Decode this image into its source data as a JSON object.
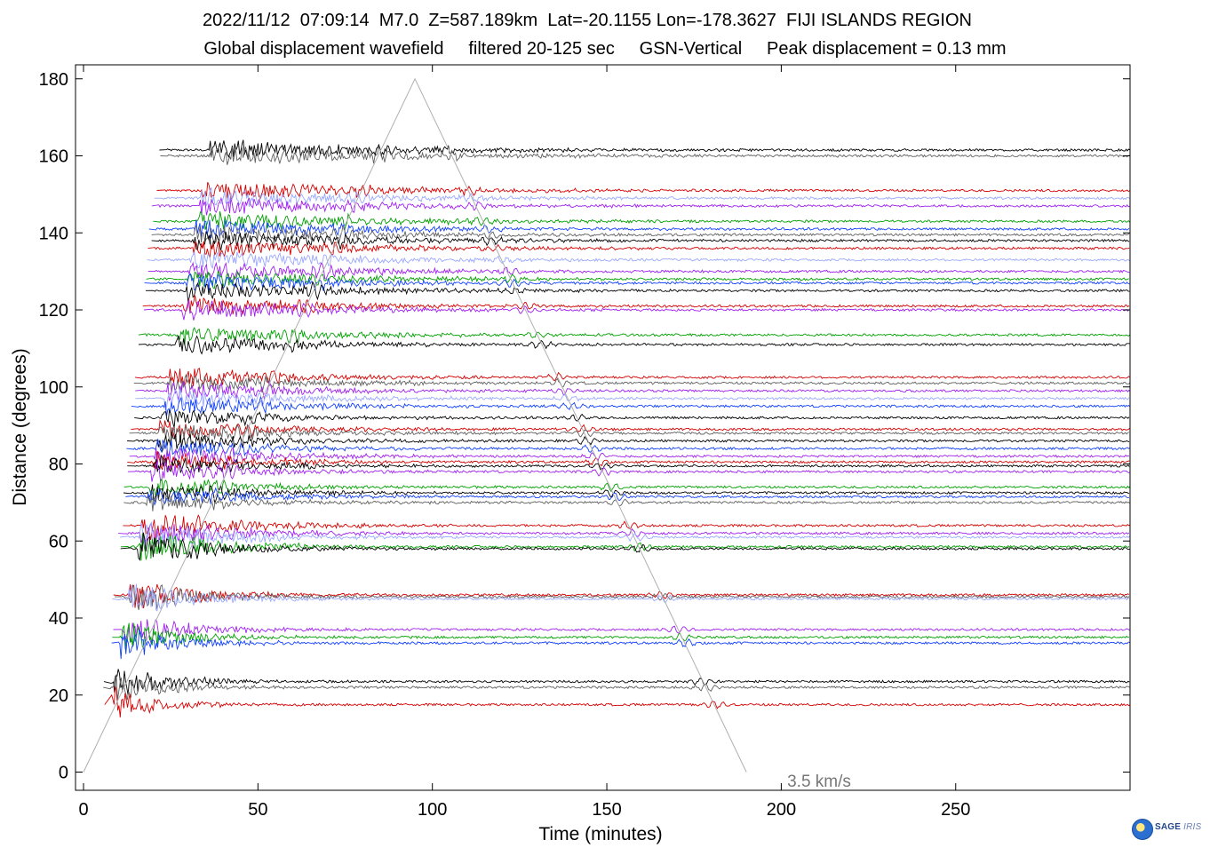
{
  "header": {
    "line1": "2022/11/12  07:09:14  M7.0  Z=587.189km  Lat=-20.1155 Lon=-178.3627  FIJI ISLANDS REGION",
    "line2": "Global displacement wavefield     filtered 20-125 sec     GSN-Vertical     Peak displacement = 0.13 mm"
  },
  "logo": {
    "text_main": "SAGE",
    "text_sub": "IRIS"
  },
  "chart_data": {
    "type": "line",
    "title": "2022/11/12  07:09:14  M7.0  Z=587.189km  Lat=-20.1155 Lon=-178.3627  FIJI ISLANDS REGION",
    "subtitle": "Global displacement wavefield     filtered 20-125 sec     GSN-Vertical     Peak displacement = 0.13 mm",
    "xlabel": "Time (minutes)",
    "ylabel": "Distance (degrees)",
    "xlim": [
      0,
      300
    ],
    "ylim": [
      -5,
      185
    ],
    "x_ticks": [
      0,
      50,
      100,
      150,
      200,
      250
    ],
    "y_ticks": [
      0,
      20,
      40,
      60,
      80,
      100,
      120,
      140,
      160,
      180
    ],
    "grid": false,
    "annotation": {
      "text": "3.5 km/s",
      "x": 200,
      "y": -2
    },
    "reference_line": {
      "name": "3.5 km/s",
      "points": [
        [
          0,
          0
        ],
        [
          95,
          180
        ],
        [
          190,
          0
        ]
      ],
      "color": "#aaaaaa"
    },
    "colors": {
      "black": "#000000",
      "red": "#d40000",
      "purple": "#a020f0",
      "green": "#00a000",
      "blue": "#1040ff",
      "lightblue": "#9aa8ff",
      "gray": "#606060"
    },
    "series": [
      {
        "distance": 161.5,
        "color": "#000000"
      },
      {
        "distance": 160.0,
        "color": "#606060"
      },
      {
        "distance": 151.0,
        "color": "#d40000"
      },
      {
        "distance": 149.0,
        "color": "#9aa8ff"
      },
      {
        "distance": 147.0,
        "color": "#a020f0"
      },
      {
        "distance": 143.0,
        "color": "#00a000"
      },
      {
        "distance": 141.0,
        "color": "#1040ff"
      },
      {
        "distance": 139.5,
        "color": "#606060"
      },
      {
        "distance": 138.0,
        "color": "#000000"
      },
      {
        "distance": 136.0,
        "color": "#d40000"
      },
      {
        "distance": 133.0,
        "color": "#9aa8ff"
      },
      {
        "distance": 130.0,
        "color": "#a020f0"
      },
      {
        "distance": 128.0,
        "color": "#00a000"
      },
      {
        "distance": 127.0,
        "color": "#1040ff"
      },
      {
        "distance": 125.0,
        "color": "#000000"
      },
      {
        "distance": 121.0,
        "color": "#d40000"
      },
      {
        "distance": 120.0,
        "color": "#a020f0"
      },
      {
        "distance": 113.5,
        "color": "#00a000"
      },
      {
        "distance": 111.0,
        "color": "#000000"
      },
      {
        "distance": 102.5,
        "color": "#d40000"
      },
      {
        "distance": 101.0,
        "color": "#606060"
      },
      {
        "distance": 99.0,
        "color": "#a020f0"
      },
      {
        "distance": 97.0,
        "color": "#9aa8ff"
      },
      {
        "distance": 95.0,
        "color": "#1040ff"
      },
      {
        "distance": 92.0,
        "color": "#000000"
      },
      {
        "distance": 89.0,
        "color": "#d40000"
      },
      {
        "distance": 88.0,
        "color": "#606060"
      },
      {
        "distance": 86.0,
        "color": "#000000"
      },
      {
        "distance": 84.0,
        "color": "#1040ff"
      },
      {
        "distance": 82.0,
        "color": "#a020f0"
      },
      {
        "distance": 80.5,
        "color": "#d40000"
      },
      {
        "distance": 79.5,
        "color": "#000000"
      },
      {
        "distance": 78.0,
        "color": "#a020f0"
      },
      {
        "distance": 74.0,
        "color": "#00a000"
      },
      {
        "distance": 72.5,
        "color": "#000000"
      },
      {
        "distance": 71.5,
        "color": "#1040ff"
      },
      {
        "distance": 70.0,
        "color": "#606060"
      },
      {
        "distance": 64.0,
        "color": "#d40000"
      },
      {
        "distance": 62.0,
        "color": "#a020f0"
      },
      {
        "distance": 61.0,
        "color": "#9aa8ff"
      },
      {
        "distance": 58.5,
        "color": "#00a000"
      },
      {
        "distance": 58.0,
        "color": "#000000"
      },
      {
        "distance": 46.0,
        "color": "#d40000"
      },
      {
        "distance": 45.5,
        "color": "#606060"
      },
      {
        "distance": 45.0,
        "color": "#9aa8ff"
      },
      {
        "distance": 37.0,
        "color": "#a020f0"
      },
      {
        "distance": 35.0,
        "color": "#00a000"
      },
      {
        "distance": 33.5,
        "color": "#1040ff"
      },
      {
        "distance": 23.5,
        "color": "#000000"
      },
      {
        "distance": 22.0,
        "color": "#606060"
      },
      {
        "distance": 17.5,
        "color": "#d40000"
      }
    ]
  }
}
